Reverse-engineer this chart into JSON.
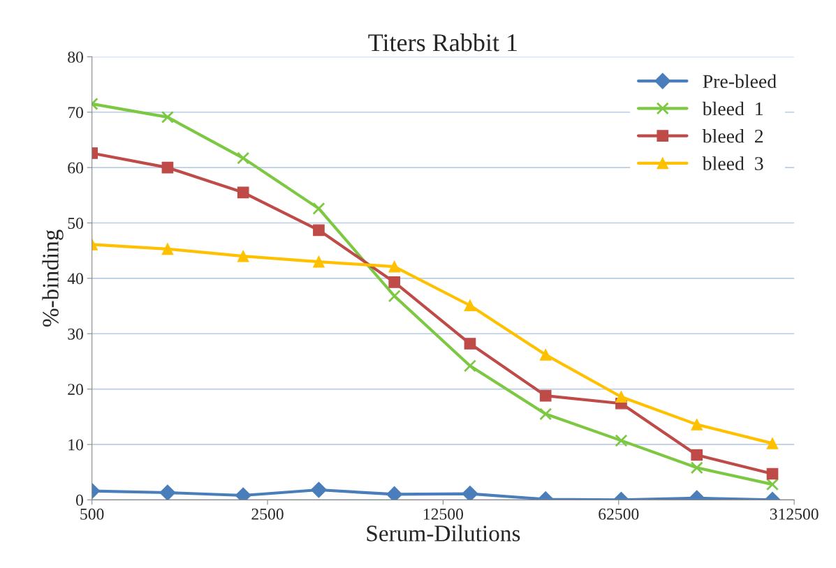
{
  "chart_data": {
    "type": "line",
    "title": "Titers Rabbit 1",
    "xlabel": "Serum-Dilutions",
    "ylabel": "%-binding",
    "x": [
      500,
      1000,
      2000,
      4000,
      8000,
      16000,
      32000,
      64000,
      128000,
      256000
    ],
    "log": "x",
    "xlim": [
      500,
      312500
    ],
    "xticks": [
      500,
      2500,
      12500,
      62500,
      312500
    ],
    "ylim": [
      0,
      80
    ],
    "yticks": [
      0,
      10,
      20,
      30,
      40,
      50,
      60,
      70,
      80
    ],
    "grid": "y",
    "legend": "top right",
    "series": [
      {
        "name": "Pre-bleed",
        "color": "#4a7ebb",
        "marker": "diamond",
        "values": [
          1.6,
          1.3,
          0.8,
          1.8,
          1.0,
          1.1,
          0.1,
          0,
          0.3,
          0
        ]
      },
      {
        "name": "bleed  1",
        "color": "#7dc843",
        "marker": "cross",
        "values": [
          71.5,
          69.1,
          61.7,
          52.6,
          36.8,
          24.2,
          15.5,
          10.7,
          5.8,
          2.8
        ]
      },
      {
        "name": "bleed  2",
        "color": "#be4b48",
        "marker": "square",
        "values": [
          62.6,
          60.0,
          55.5,
          48.7,
          39.3,
          28.2,
          18.8,
          17.4,
          8.1,
          4.7
        ]
      },
      {
        "name": "bleed  3",
        "color": "#ffc000",
        "marker": "triangle",
        "values": [
          46.1,
          45.3,
          44.0,
          43.0,
          42.1,
          35.1,
          26.2,
          18.6,
          13.6,
          10.2
        ]
      }
    ]
  }
}
